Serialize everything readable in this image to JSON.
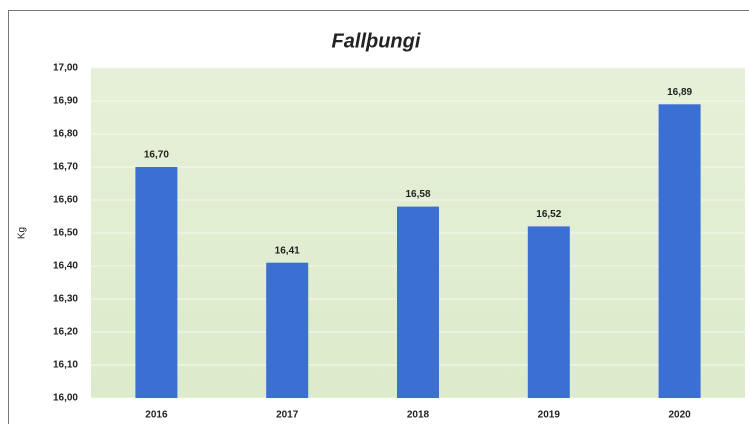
{
  "chart_data": {
    "type": "bar",
    "title": "Fallþungi",
    "y_label": "Kg",
    "categories": [
      "2016",
      "2017",
      "2018",
      "2019",
      "2020"
    ],
    "values": [
      16.7,
      16.41,
      16.58,
      16.52,
      16.89
    ],
    "value_labels": [
      "16,70",
      "16,41",
      "16,58",
      "16,52",
      "16,89"
    ],
    "color": "#3b6fd4",
    "ylim": [
      16.0,
      17.0
    ],
    "yticks": [
      {
        "value": 16.0,
        "label": "16,00"
      },
      {
        "value": 16.1,
        "label": "16,10"
      },
      {
        "value": 16.2,
        "label": "16,20"
      },
      {
        "value": 16.3,
        "label": "16,30"
      },
      {
        "value": 16.4,
        "label": "16,40"
      },
      {
        "value": 16.5,
        "label": "16,50"
      },
      {
        "value": 16.6,
        "label": "16,60"
      },
      {
        "value": 16.7,
        "label": "16,70"
      },
      {
        "value": 16.8,
        "label": "16,80"
      },
      {
        "value": 16.9,
        "label": "16,90"
      },
      {
        "value": 17.0,
        "label": "17,00"
      }
    ],
    "grid": true
  }
}
